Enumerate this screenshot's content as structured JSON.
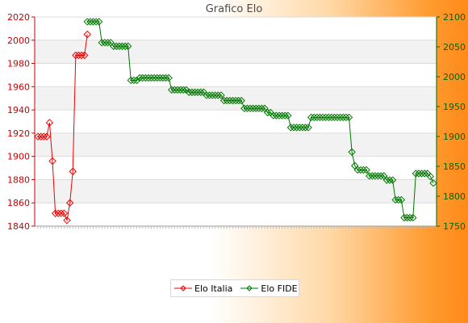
{
  "chart_data": {
    "type": "line",
    "title": "Grafico Elo",
    "grid": true,
    "legend_position": "bottom",
    "y_left": {
      "ylim": [
        1840,
        2020
      ],
      "ticks": [
        1840,
        1860,
        1880,
        1900,
        1920,
        1940,
        1960,
        1980,
        2000,
        2020
      ],
      "color": "#cc0000"
    },
    "y_right": {
      "ylim": [
        1750,
        2100
      ],
      "ticks": [
        1750,
        1800,
        1850,
        1900,
        1950,
        2000,
        2050,
        2100
      ],
      "color": "#006600"
    },
    "x_count": 137,
    "series": [
      {
        "name": "Elo Italia",
        "axis": "left",
        "color": "#ee0000",
        "points": [
          [
            0,
            1917
          ],
          [
            1,
            1917
          ],
          [
            2,
            1917
          ],
          [
            3,
            1917
          ],
          [
            4,
            1929
          ],
          [
            5,
            1896
          ],
          [
            6,
            1851
          ],
          [
            7,
            1851
          ],
          [
            8,
            1851
          ],
          [
            9,
            1851
          ],
          [
            10,
            1845
          ],
          [
            11,
            1860
          ],
          [
            12,
            1887
          ],
          [
            13,
            1987
          ],
          [
            14,
            1987
          ],
          [
            15,
            1987
          ],
          [
            16,
            1987
          ],
          [
            17,
            2005
          ]
        ]
      },
      {
        "name": "Elo FIDE",
        "axis": "right",
        "color": "#007700",
        "points": [
          [
            17,
            2092
          ],
          [
            18,
            2092
          ],
          [
            19,
            2092
          ],
          [
            20,
            2092
          ],
          [
            21,
            2092
          ],
          [
            22,
            2057
          ],
          [
            23,
            2057
          ],
          [
            24,
            2057
          ],
          [
            25,
            2057
          ],
          [
            26,
            2051
          ],
          [
            27,
            2051
          ],
          [
            28,
            2051
          ],
          [
            29,
            2051
          ],
          [
            30,
            2051
          ],
          [
            31,
            2051
          ],
          [
            32,
            1994
          ],
          [
            33,
            1994
          ],
          [
            34,
            1994
          ],
          [
            35,
            1998
          ],
          [
            36,
            1998
          ],
          [
            37,
            1998
          ],
          [
            38,
            1998
          ],
          [
            39,
            1998
          ],
          [
            40,
            1998
          ],
          [
            41,
            1998
          ],
          [
            42,
            1998
          ],
          [
            43,
            1998
          ],
          [
            44,
            1998
          ],
          [
            45,
            1998
          ],
          [
            46,
            1978
          ],
          [
            47,
            1978
          ],
          [
            48,
            1978
          ],
          [
            49,
            1978
          ],
          [
            50,
            1978
          ],
          [
            51,
            1978
          ],
          [
            52,
            1974
          ],
          [
            53,
            1974
          ],
          [
            54,
            1974
          ],
          [
            55,
            1974
          ],
          [
            56,
            1974
          ],
          [
            57,
            1974
          ],
          [
            58,
            1969
          ],
          [
            59,
            1969
          ],
          [
            60,
            1969
          ],
          [
            61,
            1969
          ],
          [
            62,
            1969
          ],
          [
            63,
            1969
          ],
          [
            64,
            1960
          ],
          [
            65,
            1960
          ],
          [
            66,
            1960
          ],
          [
            67,
            1960
          ],
          [
            68,
            1960
          ],
          [
            69,
            1960
          ],
          [
            70,
            1960
          ],
          [
            71,
            1947
          ],
          [
            72,
            1947
          ],
          [
            73,
            1947
          ],
          [
            74,
            1947
          ],
          [
            75,
            1947
          ],
          [
            76,
            1947
          ],
          [
            77,
            1947
          ],
          [
            78,
            1947
          ],
          [
            79,
            1940
          ],
          [
            80,
            1940
          ],
          [
            81,
            1935
          ],
          [
            82,
            1935
          ],
          [
            83,
            1935
          ],
          [
            84,
            1935
          ],
          [
            85,
            1935
          ],
          [
            86,
            1935
          ],
          [
            87,
            1915
          ],
          [
            88,
            1915
          ],
          [
            89,
            1915
          ],
          [
            90,
            1915
          ],
          [
            91,
            1915
          ],
          [
            92,
            1915
          ],
          [
            93,
            1915
          ],
          [
            94,
            1932
          ],
          [
            95,
            1932
          ],
          [
            96,
            1932
          ],
          [
            97,
            1932
          ],
          [
            98,
            1932
          ],
          [
            99,
            1932
          ],
          [
            100,
            1932
          ],
          [
            101,
            1932
          ],
          [
            102,
            1932
          ],
          [
            103,
            1932
          ],
          [
            104,
            1932
          ],
          [
            105,
            1932
          ],
          [
            106,
            1932
          ],
          [
            107,
            1932
          ],
          [
            108,
            1874
          ],
          [
            109,
            1851
          ],
          [
            110,
            1844
          ],
          [
            111,
            1844
          ],
          [
            112,
            1844
          ],
          [
            113,
            1844
          ],
          [
            114,
            1834
          ],
          [
            115,
            1834
          ],
          [
            116,
            1834
          ],
          [
            117,
            1834
          ],
          [
            118,
            1834
          ],
          [
            119,
            1834
          ],
          [
            120,
            1827
          ],
          [
            121,
            1827
          ],
          [
            122,
            1827
          ],
          [
            123,
            1794
          ],
          [
            124,
            1794
          ],
          [
            125,
            1794
          ],
          [
            126,
            1764
          ],
          [
            127,
            1764
          ],
          [
            128,
            1764
          ],
          [
            129,
            1764
          ],
          [
            130,
            1838
          ],
          [
            131,
            1838
          ],
          [
            132,
            1838
          ],
          [
            133,
            1838
          ],
          [
            134,
            1838
          ],
          [
            135,
            1833
          ],
          [
            136,
            1822
          ]
        ]
      }
    ]
  }
}
